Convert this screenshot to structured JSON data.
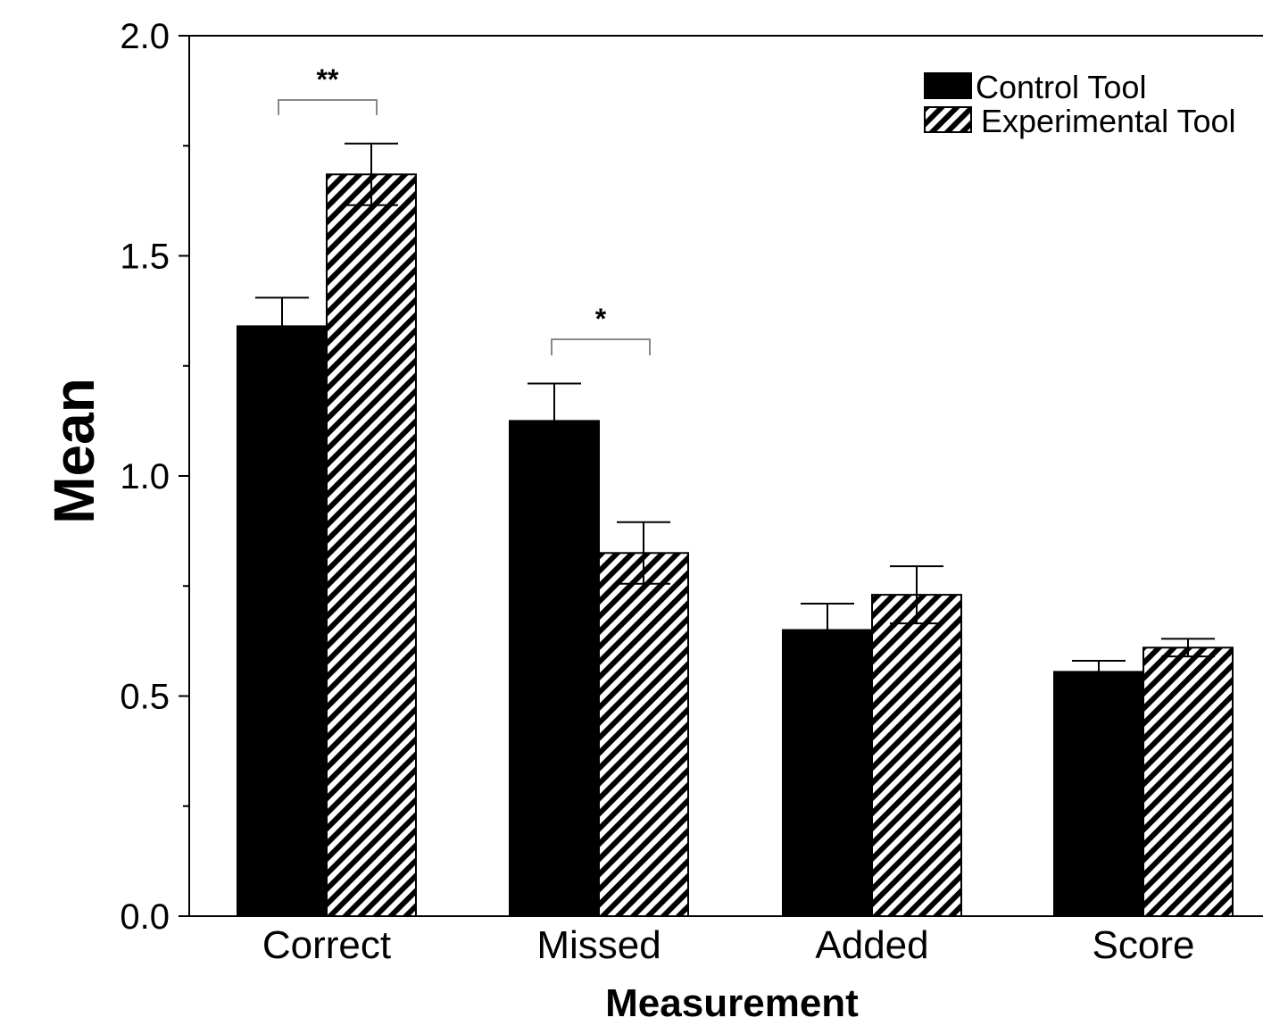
{
  "chart_data": {
    "type": "bar",
    "xlabel": "Measurement",
    "ylabel": "Mean",
    "ylim": [
      0,
      2.0
    ],
    "yticks": [
      "0.0",
      "0.5",
      "1.0",
      "1.5",
      "2.0"
    ],
    "categories": [
      "Correct",
      "Missed",
      "Added",
      "Score"
    ],
    "series": [
      {
        "name": "Control Tool",
        "fill": "solid",
        "color": "#000000",
        "values": [
          1.34,
          1.125,
          0.65,
          0.555
        ],
        "error": [
          0.065,
          0.085,
          0.06,
          0.025
        ]
      },
      {
        "name": "Experimental Tool",
        "fill": "hatched",
        "color": "#000000",
        "values": [
          1.685,
          0.825,
          0.73,
          0.61
        ],
        "error": [
          0.07,
          0.07,
          0.065,
          0.02
        ]
      }
    ],
    "significance": [
      {
        "category": "Correct",
        "label": "**"
      },
      {
        "category": "Missed",
        "label": "*"
      }
    ],
    "legend": "top-right",
    "grid": false
  }
}
